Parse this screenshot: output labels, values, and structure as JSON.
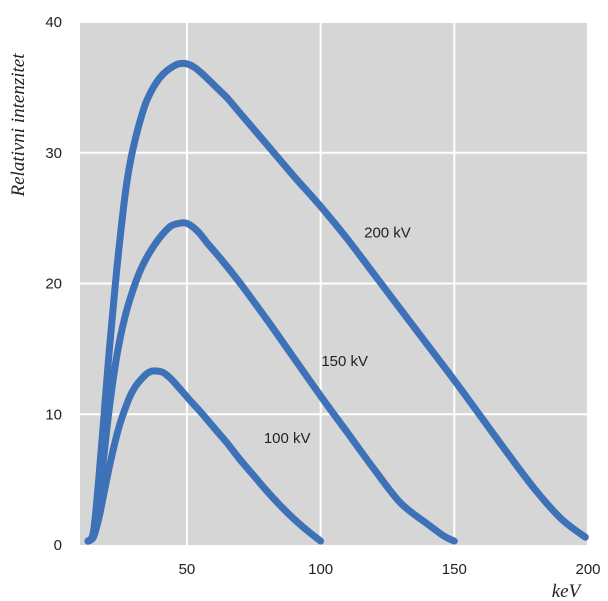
{
  "chart_data": {
    "type": "line",
    "title": "",
    "xlabel": "keV",
    "ylabel": "Relativni intenzitet",
    "xlim": [
      10,
      200
    ],
    "ylim": [
      0,
      40
    ],
    "x_ticks": [
      50,
      100,
      150,
      200
    ],
    "y_ticks": [
      0,
      10,
      20,
      30,
      40
    ],
    "grid": true,
    "legend": "none",
    "colors": {
      "plot_background": "#d6d6d6",
      "grid": "#ffffff",
      "line": "#3d72b8"
    },
    "series": [
      {
        "name": "100 kV",
        "x": [
          13,
          15,
          17,
          19,
          21,
          23,
          25,
          27,
          29,
          31,
          33,
          35,
          37,
          39,
          41,
          43,
          45,
          48,
          51,
          55,
          60,
          65,
          70,
          75,
          80,
          85,
          90,
          95,
          100
        ],
        "y": [
          0.3,
          0.6,
          2.0,
          4.0,
          6.0,
          7.8,
          9.3,
          10.5,
          11.5,
          12.2,
          12.7,
          13.1,
          13.3,
          13.3,
          13.2,
          12.9,
          12.5,
          11.8,
          11.1,
          10.2,
          9.0,
          7.8,
          6.5,
          5.3,
          4.1,
          3.0,
          2.0,
          1.1,
          0.3
        ]
      },
      {
        "name": "150 kV",
        "x": [
          13,
          15,
          17,
          19,
          21,
          23,
          25,
          27,
          29,
          31,
          33,
          35,
          38,
          41,
          44,
          47,
          50,
          54,
          58,
          63,
          70,
          80,
          90,
          100,
          110,
          120,
          130,
          140,
          146,
          150
        ],
        "y": [
          0.3,
          0.8,
          3.5,
          7.0,
          10.5,
          13.5,
          15.8,
          17.6,
          19.0,
          20.2,
          21.2,
          22.0,
          23.0,
          23.8,
          24.4,
          24.6,
          24.6,
          24.0,
          23.0,
          21.8,
          20.0,
          17.2,
          14.3,
          11.4,
          8.6,
          5.8,
          3.2,
          1.6,
          0.7,
          0.3
        ]
      },
      {
        "name": "200 kV",
        "x": [
          13,
          15,
          17,
          19,
          21,
          23,
          25,
          27,
          29,
          31,
          33,
          35,
          38,
          41,
          44,
          47,
          50,
          53,
          57,
          61,
          65,
          70,
          80,
          90,
          100,
          110,
          120,
          130,
          140,
          150,
          160,
          170,
          180,
          190,
          199
        ],
        "y": [
          0.3,
          1.0,
          5.0,
          10.0,
          15.0,
          19.5,
          23.5,
          27.0,
          29.5,
          31.3,
          32.8,
          34.0,
          35.2,
          36.0,
          36.5,
          36.8,
          36.8,
          36.5,
          35.8,
          35.0,
          34.2,
          33.0,
          30.6,
          28.2,
          25.9,
          23.4,
          20.7,
          18.0,
          15.3,
          12.6,
          9.8,
          7.0,
          4.3,
          2.0,
          0.6
        ]
      }
    ],
    "annotations": [
      {
        "text": "200 kV",
        "x": 125,
        "y": 23.5
      },
      {
        "text": "150 kV",
        "x": 109,
        "y": 13.7
      },
      {
        "text": "100 kV",
        "x": 87.5,
        "y": 7.8
      }
    ]
  }
}
